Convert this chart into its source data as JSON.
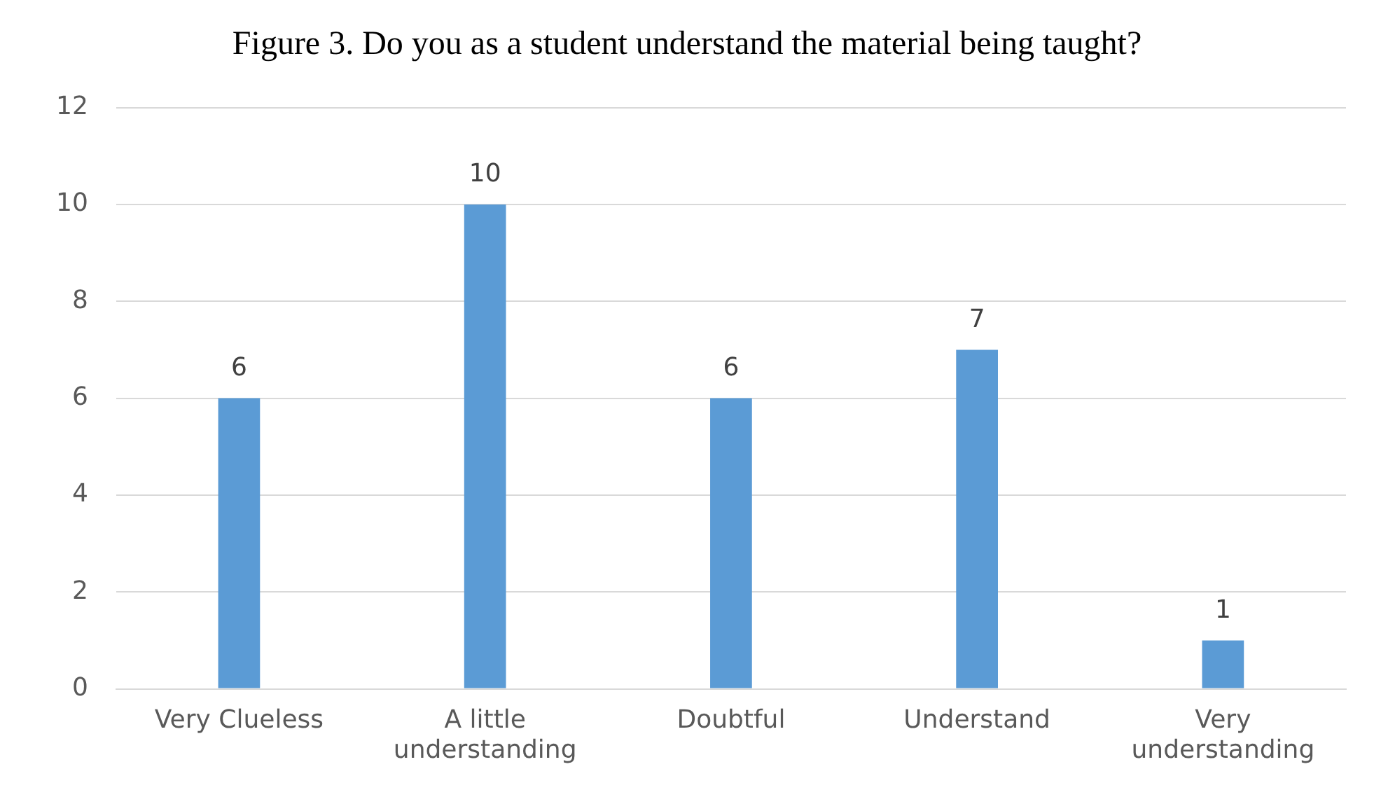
{
  "chart_data": {
    "type": "bar",
    "title": "Figure 3. Do you as a student understand the material being taught?",
    "categories": [
      "Very Clueless",
      "A little understanding",
      "Doubtful",
      "Understand",
      "Very understanding"
    ],
    "values": [
      6,
      10,
      6,
      7,
      1
    ],
    "color": "#5b9bd5",
    "ylim": [
      0,
      12
    ],
    "yticks": [
      0,
      2,
      4,
      6,
      8,
      10,
      12
    ],
    "grid": "y",
    "data_labels": true
  }
}
